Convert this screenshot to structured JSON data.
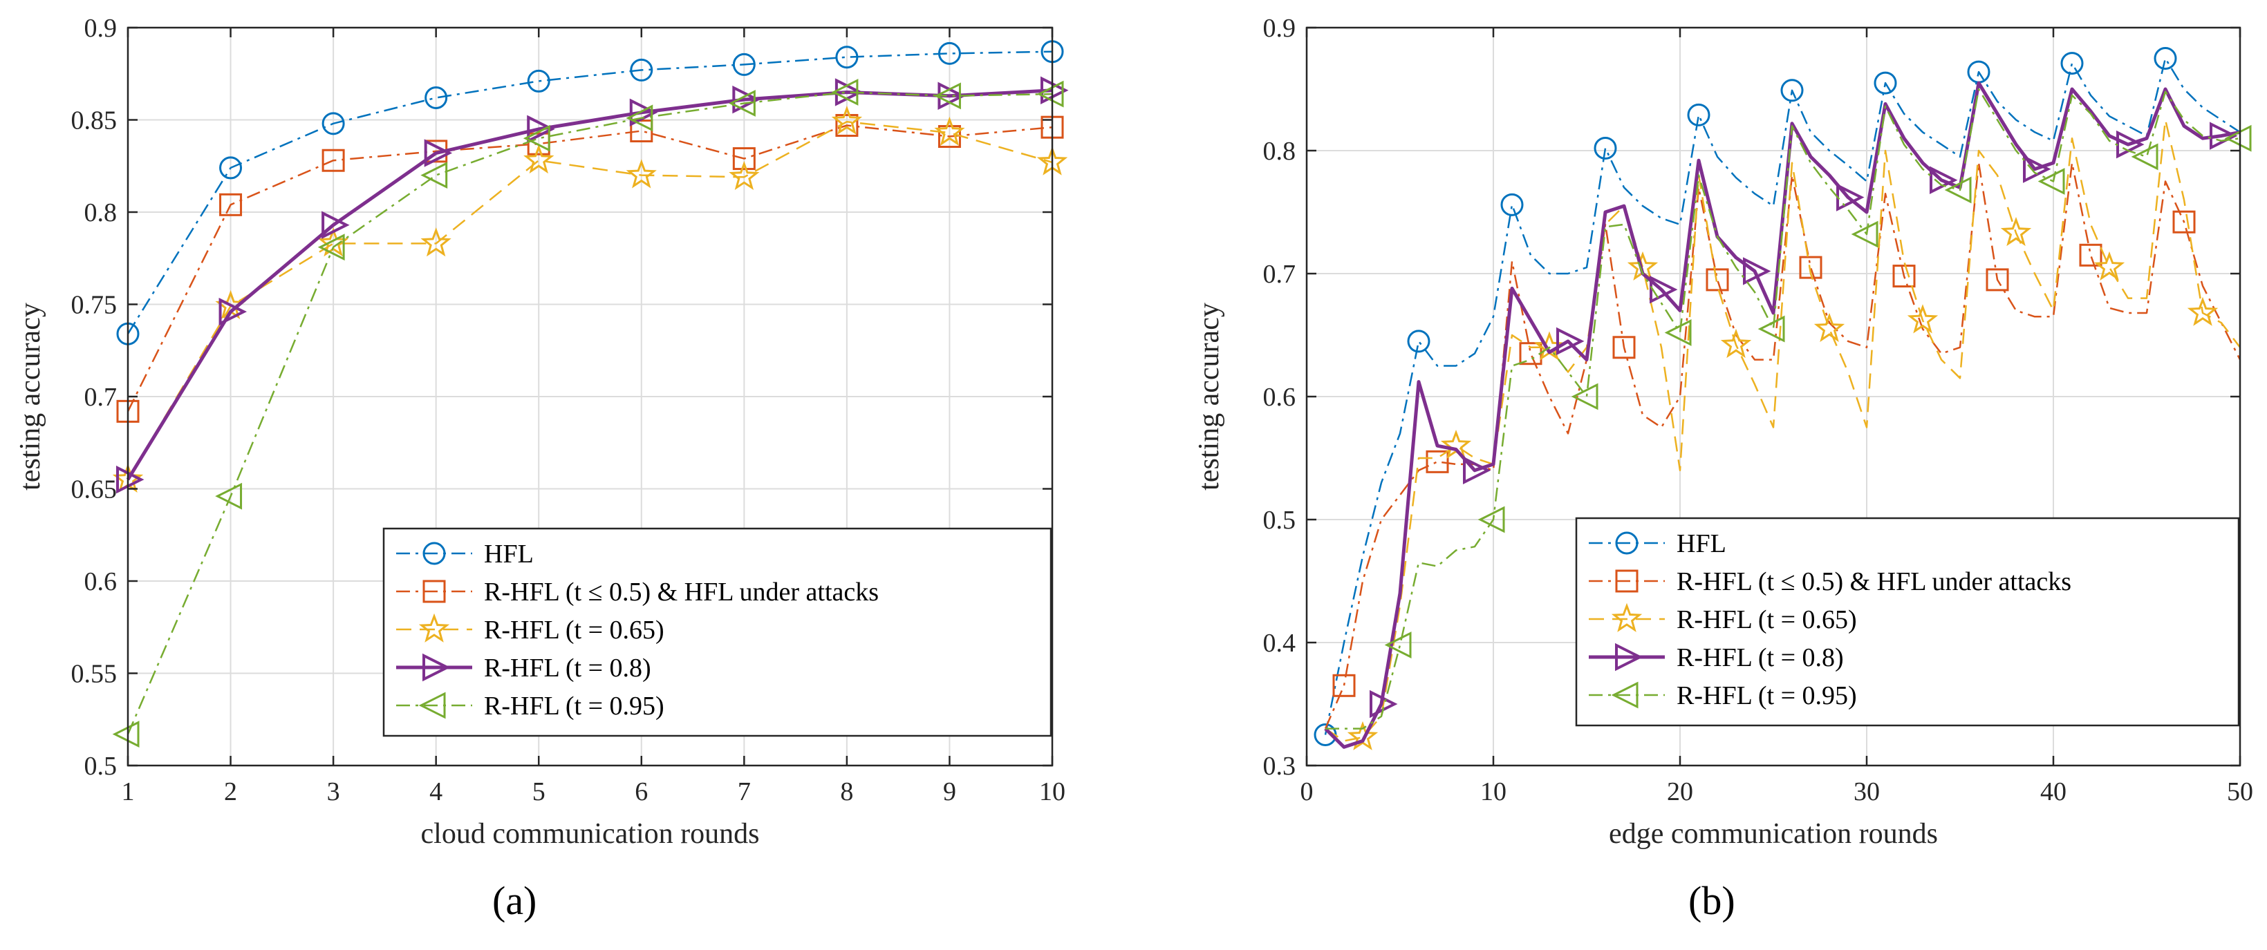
{
  "chart_data": [
    {
      "type": "line",
      "caption": "(a)",
      "xlabel": "cloud communication rounds",
      "ylabel": "testing accuracy",
      "xlim": [
        1,
        10
      ],
      "ylim": [
        0.5,
        0.9
      ],
      "xticks": [
        1,
        2,
        3,
        4,
        5,
        6,
        7,
        8,
        9,
        10
      ],
      "yticks": [
        0.5,
        0.55,
        0.6,
        0.65,
        0.7,
        0.75,
        0.8,
        0.85,
        0.9
      ],
      "grid": true,
      "legend_position": "bottom-right",
      "series": [
        {
          "name": "HFL",
          "color": "#0072BD",
          "dash": "dashdot",
          "marker": "circle",
          "width": 2.5,
          "x": [
            1,
            2,
            3,
            4,
            5,
            6,
            7,
            8,
            9,
            10
          ],
          "y": [
            0.734,
            0.824,
            0.848,
            0.862,
            0.871,
            0.877,
            0.88,
            0.884,
            0.886,
            0.887
          ],
          "mx": [
            1,
            2,
            3,
            4,
            5,
            6,
            7,
            8,
            9,
            10
          ]
        },
        {
          "name": "R-HFL (t ≤ 0.5) & HFL under attacks",
          "color": "#D95319",
          "dash": "dashdot",
          "marker": "square",
          "width": 2.5,
          "x": [
            1,
            2,
            3,
            4,
            5,
            6,
            7,
            8,
            9,
            10
          ],
          "y": [
            0.692,
            0.804,
            0.828,
            0.833,
            0.837,
            0.844,
            0.829,
            0.847,
            0.841,
            0.846
          ],
          "mx": [
            1,
            2,
            3,
            4,
            5,
            6,
            7,
            8,
            9,
            10
          ]
        },
        {
          "name": "R-HFL (t = 0.65)",
          "color": "#EDB120",
          "dash": "dashed",
          "marker": "star",
          "width": 2.5,
          "x": [
            1,
            2,
            3,
            4,
            5,
            6,
            7,
            8,
            9,
            10
          ],
          "y": [
            0.655,
            0.749,
            0.783,
            0.783,
            0.828,
            0.82,
            0.819,
            0.849,
            0.843,
            0.827
          ],
          "mx": [
            1,
            2,
            3,
            4,
            5,
            6,
            7,
            8,
            9,
            10
          ]
        },
        {
          "name": "R-HFL (t = 0.8)",
          "color": "#7E2F8E",
          "dash": "solid",
          "marker": "triangle-right",
          "width": 5,
          "x": [
            1,
            2,
            3,
            4,
            5,
            6,
            7,
            8,
            9,
            10
          ],
          "y": [
            0.655,
            0.746,
            0.793,
            0.832,
            0.845,
            0.854,
            0.861,
            0.865,
            0.863,
            0.866
          ],
          "mx": [
            1,
            2,
            3,
            4,
            5,
            6,
            7,
            8,
            9,
            10
          ]
        },
        {
          "name": "R-HFL (t = 0.95)",
          "color": "#77AC30",
          "dash": "dashdot",
          "marker": "triangle-left",
          "width": 2.5,
          "x": [
            1,
            2,
            3,
            4,
            5,
            6,
            7,
            8,
            9,
            10
          ],
          "y": [
            0.517,
            0.646,
            0.781,
            0.82,
            0.84,
            0.851,
            0.859,
            0.865,
            0.863,
            0.864
          ],
          "mx": [
            1,
            2,
            3,
            4,
            5,
            6,
            7,
            8,
            9,
            10
          ]
        }
      ]
    },
    {
      "type": "line",
      "caption": "(b)",
      "xlabel": "edge communication rounds",
      "ylabel": "testing accuracy",
      "xlim": [
        0,
        50
      ],
      "ylim": [
        0.3,
        0.9
      ],
      "xticks": [
        0,
        10,
        20,
        30,
        40,
        50
      ],
      "yticks": [
        0.3,
        0.4,
        0.5,
        0.6,
        0.7,
        0.8,
        0.9
      ],
      "grid": true,
      "legend_position": "bottom-right",
      "series": [
        {
          "name": "HFL",
          "color": "#0072BD",
          "dash": "dashdot",
          "marker": "circle",
          "width": 2.5,
          "x": [
            1,
            2,
            3,
            4,
            5,
            6,
            7,
            8,
            9,
            10,
            11,
            12,
            13,
            14,
            15,
            16,
            17,
            18,
            19,
            20,
            21,
            22,
            23,
            24,
            25,
            26,
            27,
            28,
            29,
            30,
            31,
            32,
            33,
            34,
            35,
            36,
            37,
            38,
            39,
            40,
            41,
            42,
            43,
            44,
            45,
            46,
            47,
            48,
            49,
            50
          ],
          "y": [
            0.325,
            0.4,
            0.47,
            0.53,
            0.57,
            0.645,
            0.625,
            0.625,
            0.635,
            0.665,
            0.756,
            0.715,
            0.7,
            0.7,
            0.705,
            0.802,
            0.77,
            0.755,
            0.745,
            0.74,
            0.829,
            0.795,
            0.778,
            0.765,
            0.755,
            0.849,
            0.815,
            0.8,
            0.788,
            0.775,
            0.855,
            0.83,
            0.815,
            0.805,
            0.795,
            0.864,
            0.84,
            0.825,
            0.815,
            0.808,
            0.871,
            0.845,
            0.828,
            0.82,
            0.812,
            0.875,
            0.85,
            0.835,
            0.825,
            0.815
          ],
          "mx": [
            1,
            6,
            11,
            16,
            21,
            26,
            31,
            36,
            41,
            46
          ]
        },
        {
          "name": "R-HFL (t ≤ 0.5) & HFL under attacks",
          "color": "#D95319",
          "dash": "dashdot",
          "marker": "square",
          "width": 2.5,
          "x": [
            1,
            2,
            3,
            4,
            5,
            6,
            7,
            8,
            9,
            10,
            11,
            12,
            13,
            14,
            15,
            16,
            17,
            18,
            19,
            20,
            21,
            22,
            23,
            24,
            25,
            26,
            27,
            28,
            29,
            30,
            31,
            32,
            33,
            34,
            35,
            36,
            37,
            38,
            39,
            40,
            41,
            42,
            43,
            44,
            45,
            46,
            47,
            48,
            49,
            50
          ],
          "y": [
            0.33,
            0.365,
            0.45,
            0.5,
            0.52,
            0.54,
            0.547,
            0.545,
            0.545,
            0.54,
            0.71,
            0.635,
            0.6,
            0.57,
            0.63,
            0.74,
            0.64,
            0.585,
            0.575,
            0.6,
            0.77,
            0.695,
            0.65,
            0.63,
            0.63,
            0.78,
            0.705,
            0.66,
            0.645,
            0.64,
            0.765,
            0.698,
            0.655,
            0.635,
            0.64,
            0.79,
            0.695,
            0.67,
            0.665,
            0.665,
            0.79,
            0.715,
            0.672,
            0.668,
            0.668,
            0.775,
            0.742,
            0.69,
            0.66,
            0.63
          ],
          "mx": [
            2,
            7,
            12,
            17,
            22,
            27,
            32,
            37,
            42,
            47
          ]
        },
        {
          "name": "R-HFL (t = 0.65)",
          "color": "#EDB120",
          "dash": "dashed",
          "marker": "star",
          "width": 2.5,
          "x": [
            1,
            2,
            3,
            4,
            5,
            6,
            7,
            8,
            9,
            10,
            11,
            12,
            13,
            14,
            15,
            16,
            17,
            18,
            19,
            20,
            21,
            22,
            23,
            24,
            25,
            26,
            27,
            28,
            29,
            30,
            31,
            32,
            33,
            34,
            35,
            36,
            37,
            38,
            39,
            40,
            41,
            42,
            43,
            44,
            45,
            46,
            47,
            48,
            49,
            50
          ],
          "y": [
            0.33,
            0.32,
            0.323,
            0.34,
            0.43,
            0.55,
            0.55,
            0.56,
            0.55,
            0.545,
            0.65,
            0.64,
            0.64,
            0.62,
            0.64,
            0.74,
            0.755,
            0.705,
            0.64,
            0.54,
            0.78,
            0.69,
            0.642,
            0.61,
            0.575,
            0.79,
            0.7,
            0.655,
            0.62,
            0.575,
            0.8,
            0.71,
            0.662,
            0.63,
            0.615,
            0.8,
            0.78,
            0.733,
            0.7,
            0.67,
            0.81,
            0.74,
            0.705,
            0.68,
            0.68,
            0.825,
            0.76,
            0.668,
            0.66,
            0.64
          ],
          "mx": [
            3,
            8,
            13,
            18,
            23,
            28,
            33,
            38,
            43,
            48
          ]
        },
        {
          "name": "R-HFL (t = 0.8)",
          "color": "#7E2F8E",
          "dash": "solid",
          "marker": "triangle-right",
          "width": 5,
          "x": [
            1,
            2,
            3,
            4,
            5,
            6,
            7,
            8,
            9,
            10,
            11,
            12,
            13,
            14,
            15,
            16,
            17,
            18,
            19,
            20,
            21,
            22,
            23,
            24,
            25,
            26,
            27,
            28,
            29,
            30,
            31,
            32,
            33,
            34,
            35,
            36,
            37,
            38,
            39,
            40,
            41,
            42,
            43,
            44,
            45,
            46,
            47,
            48,
            49,
            50
          ],
          "y": [
            0.33,
            0.315,
            0.32,
            0.35,
            0.44,
            0.612,
            0.56,
            0.557,
            0.54,
            0.545,
            0.688,
            0.662,
            0.636,
            0.645,
            0.63,
            0.75,
            0.755,
            0.7,
            0.687,
            0.67,
            0.792,
            0.73,
            0.713,
            0.702,
            0.668,
            0.822,
            0.795,
            0.78,
            0.762,
            0.75,
            0.838,
            0.81,
            0.79,
            0.776,
            0.77,
            0.855,
            0.83,
            0.805,
            0.785,
            0.79,
            0.85,
            0.832,
            0.812,
            0.805,
            0.81,
            0.85,
            0.82,
            0.81,
            0.812,
            0.815
          ],
          "mx": [
            4,
            9,
            14,
            19,
            24,
            29,
            34,
            39,
            44,
            49
          ]
        },
        {
          "name": "R-HFL (t = 0.95)",
          "color": "#77AC30",
          "dash": "dashdot",
          "marker": "triangle-left",
          "width": 2.5,
          "x": [
            1,
            2,
            3,
            4,
            5,
            6,
            7,
            8,
            9,
            10,
            11,
            12,
            13,
            14,
            15,
            16,
            17,
            18,
            19,
            20,
            21,
            22,
            23,
            24,
            25,
            26,
            27,
            28,
            29,
            30,
            31,
            32,
            33,
            34,
            35,
            36,
            37,
            38,
            39,
            40,
            41,
            42,
            43,
            44,
            45,
            46,
            47,
            48,
            49,
            50
          ],
          "y": [
            0.33,
            0.33,
            0.33,
            0.34,
            0.398,
            0.465,
            0.462,
            0.475,
            0.478,
            0.5,
            0.625,
            0.63,
            0.64,
            0.62,
            0.6,
            0.738,
            0.74,
            0.7,
            0.676,
            0.652,
            0.78,
            0.73,
            0.705,
            0.685,
            0.655,
            0.82,
            0.79,
            0.77,
            0.752,
            0.732,
            0.836,
            0.805,
            0.785,
            0.772,
            0.768,
            0.85,
            0.825,
            0.8,
            0.782,
            0.775,
            0.845,
            0.83,
            0.808,
            0.8,
            0.795,
            0.848,
            0.825,
            0.812,
            0.808,
            0.81
          ],
          "mx": [
            5,
            10,
            15,
            20,
            25,
            30,
            35,
            40,
            45,
            50
          ]
        }
      ]
    }
  ]
}
